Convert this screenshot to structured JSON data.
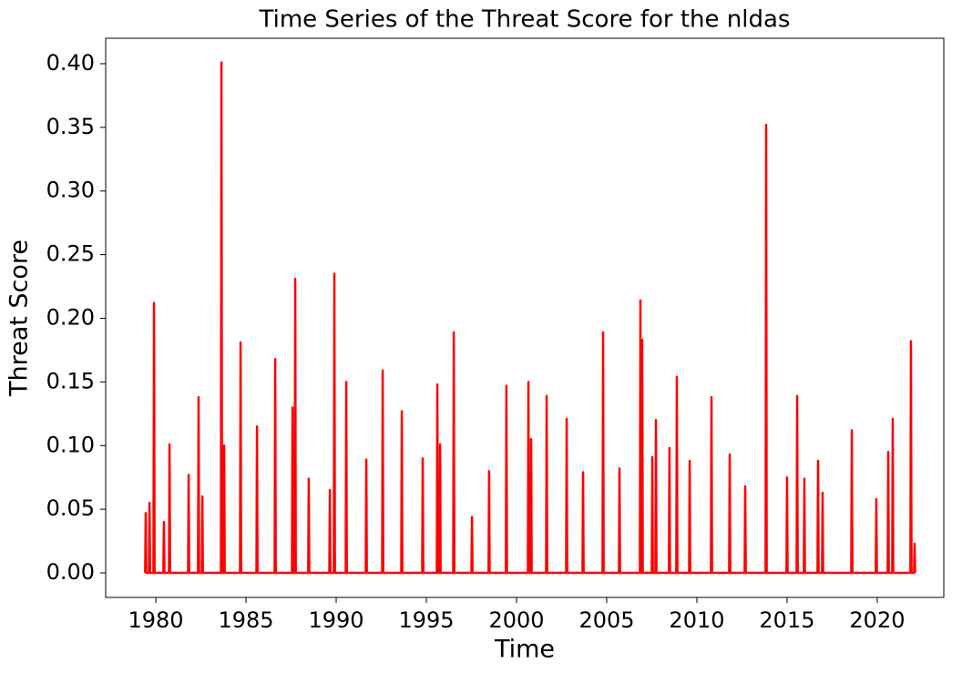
{
  "chart_data": {
    "type": "line",
    "title": "Time Series of the Threat Score for the nldas",
    "xlabel": "Time",
    "ylabel": "Threat Score",
    "color": "#ff0000",
    "grid": false,
    "xlim": [
      1977.22,
      2023.69
    ],
    "xticks": [
      1980,
      1985,
      1990,
      1995,
      2000,
      2005,
      2010,
      2015,
      2020
    ],
    "ylim": [
      -0.0193,
      0.42
    ],
    "yticks": [
      {
        "value": 0,
        "label": "0.00"
      },
      {
        "value": 0.05,
        "label": "0.05"
      },
      {
        "value": 0.1,
        "label": "0.10"
      },
      {
        "value": 0.15,
        "label": "0.15"
      },
      {
        "value": 0.2,
        "label": "0.20"
      },
      {
        "value": 0.25,
        "label": "0.25"
      },
      {
        "value": 0.3,
        "label": "0.30"
      },
      {
        "value": 0.35,
        "label": "0.35"
      },
      {
        "value": 0.4,
        "label": "0.40"
      }
    ],
    "x": [
      1979.41,
      1979.44,
      1979.47,
      1979.62,
      1979.65,
      1979.68,
      1979.87,
      1979.9,
      1979.93,
      1980.42,
      1980.45,
      1980.48,
      1980.73,
      1980.76,
      1980.79,
      1981.79,
      1981.82,
      1981.85,
      1982.34,
      1982.37,
      1982.4,
      1982.55,
      1982.58,
      1982.61,
      1983.61,
      1983.64,
      1983.67,
      1983.76,
      1983.79,
      1983.82,
      1984.67,
      1984.7,
      1984.73,
      1985.58,
      1985.61,
      1985.64,
      1986.59,
      1986.62,
      1986.65,
      1987.55,
      1987.58,
      1987.61,
      1987.7,
      1987.73,
      1987.76,
      1988.45,
      1988.48,
      1988.51,
      1989.62,
      1989.65,
      1989.68,
      1989.87,
      1989.9,
      1989.93,
      1990.53,
      1990.56,
      1990.59,
      1991.64,
      1991.67,
      1991.7,
      1992.55,
      1992.58,
      1992.61,
      1993.61,
      1993.64,
      1993.67,
      1994.77,
      1994.8,
      1994.83,
      1995.58,
      1995.61,
      1995.64,
      1995.73,
      1995.76,
      1995.79,
      1996.49,
      1996.52,
      1996.55,
      1997.5,
      1997.53,
      1997.56,
      1998.45,
      1998.48,
      1998.51,
      1999.41,
      1999.44,
      1999.47,
      2000.63,
      2000.66,
      2000.69,
      2000.78,
      2000.81,
      2000.84,
      2001.64,
      2001.67,
      2001.7,
      2002.75,
      2002.78,
      2002.81,
      2003.66,
      2003.69,
      2003.72,
      2004.77,
      2004.8,
      2004.83,
      2005.68,
      2005.71,
      2005.74,
      2006.84,
      2006.87,
      2006.9,
      2006.94,
      2006.97,
      2007.0,
      2007.5,
      2007.53,
      2007.56,
      2007.7,
      2007.73,
      2007.76,
      2008.45,
      2008.48,
      2008.51,
      2008.86,
      2008.89,
      2008.92,
      2009.57,
      2009.6,
      2009.63,
      2010.78,
      2010.81,
      2010.84,
      2011.79,
      2011.82,
      2011.85,
      2012.65,
      2012.68,
      2012.71,
      2013.81,
      2013.84,
      2013.87,
      2014.97,
      2015.0,
      2015.03,
      2015.53,
      2015.56,
      2015.59,
      2015.93,
      2015.96,
      2015.99,
      2016.69,
      2016.72,
      2016.75,
      2016.94,
      2016.97,
      2017.0,
      2018.56,
      2018.59,
      2018.62,
      2019.92,
      2019.95,
      2019.98,
      2020.58,
      2020.61,
      2020.64,
      2020.83,
      2020.86,
      2020.89,
      2021.84,
      2021.87,
      2021.9,
      2022.04,
      2022.07,
      2022.1
    ],
    "values": [
      0,
      0.047,
      0,
      0,
      0.055,
      0,
      0,
      0.212,
      0,
      0,
      0.04,
      0,
      0,
      0.101,
      0,
      0,
      0.077,
      0,
      0,
      0.138,
      0,
      0,
      0.06,
      0,
      0,
      0.401,
      0,
      0,
      0.1,
      0,
      0,
      0.181,
      0,
      0,
      0.115,
      0,
      0,
      0.168,
      0,
      0,
      0.13,
      0,
      0,
      0.231,
      0,
      0,
      0.074,
      0,
      0,
      0.065,
      0,
      0,
      0.235,
      0,
      0,
      0.15,
      0,
      0,
      0.089,
      0,
      0,
      0.159,
      0,
      0,
      0.127,
      0,
      0,
      0.09,
      0,
      0,
      0.148,
      0,
      0,
      0.101,
      0,
      0,
      0.189,
      0,
      0,
      0.044,
      0,
      0,
      0.08,
      0,
      0,
      0.147,
      0,
      0,
      0.15,
      0,
      0,
      0.105,
      0,
      0,
      0.139,
      0,
      0,
      0.121,
      0,
      0,
      0.079,
      0,
      0,
      0.189,
      0,
      0,
      0.082,
      0,
      0,
      0.214,
      0,
      0,
      0.183,
      0,
      0,
      0.091,
      0,
      0,
      0.12,
      0,
      0,
      0.098,
      0,
      0,
      0.154,
      0,
      0,
      0.088,
      0,
      0,
      0.138,
      0,
      0,
      0.093,
      0,
      0,
      0.068,
      0,
      0,
      0.352,
      0,
      0,
      0.075,
      0,
      0,
      0.139,
      0,
      0,
      0.074,
      0,
      0,
      0.088,
      0,
      0,
      0.063,
      0,
      0,
      0.112,
      0,
      0,
      0.058,
      0,
      0,
      0.095,
      0,
      0,
      0.121,
      0,
      0,
      0.182,
      0,
      0,
      0.023,
      0
    ]
  }
}
